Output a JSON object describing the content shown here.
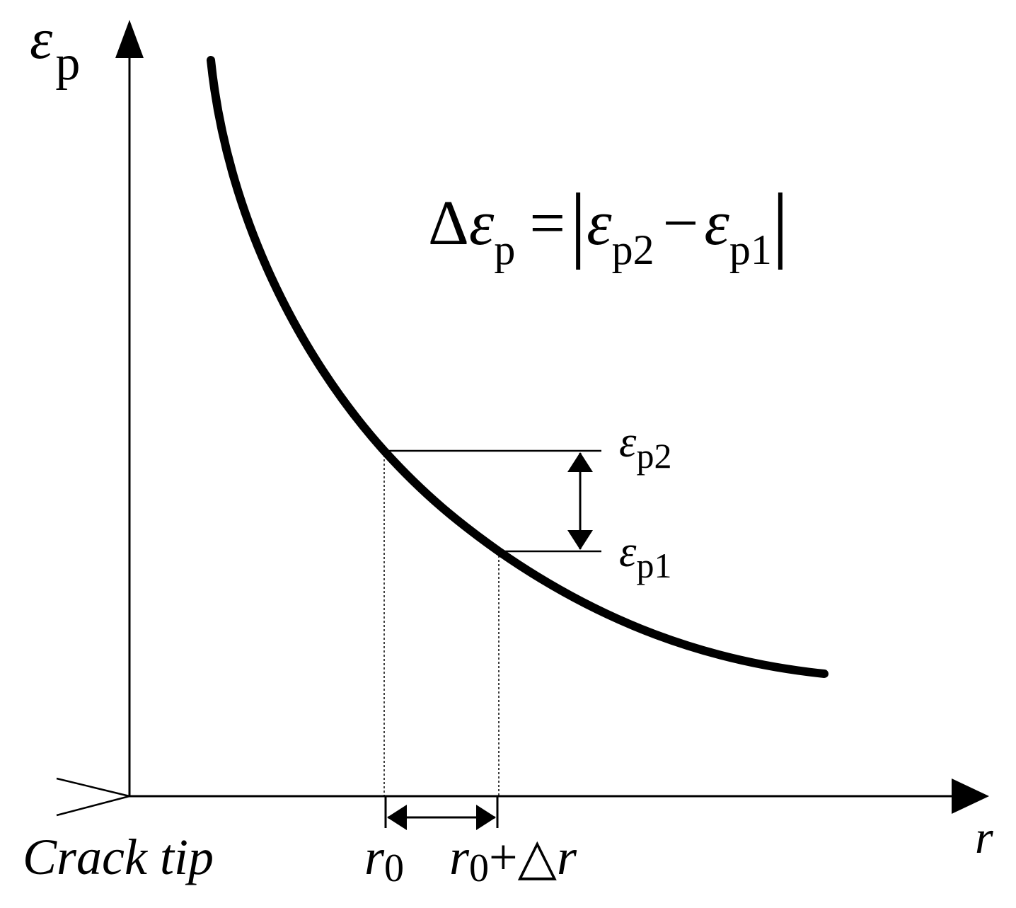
{
  "y_axis_label": {
    "symbol": "ε",
    "subscript": "p"
  },
  "x_axis_label": "r",
  "origin_label": "Crack tip",
  "formula": {
    "delta": "Δ",
    "symbol": "ε",
    "subscript": "p",
    "equals": "=",
    "left_bar": "|",
    "term1_symbol": "ε",
    "term1_subscript": "p2",
    "minus": "−",
    "term2_symbol": "ε",
    "term2_subscript": "p1",
    "right_bar": "|"
  },
  "level_labels": [
    {
      "symbol": "ε",
      "subscript": "p2"
    },
    {
      "symbol": "ε",
      "subscript": "p1"
    }
  ],
  "position_labels": [
    {
      "symbol": "r",
      "subscript": "0"
    },
    {
      "symbol": "r",
      "subscript": "0",
      "suffix": "+△",
      "suffix_symbol": "r"
    }
  ]
}
